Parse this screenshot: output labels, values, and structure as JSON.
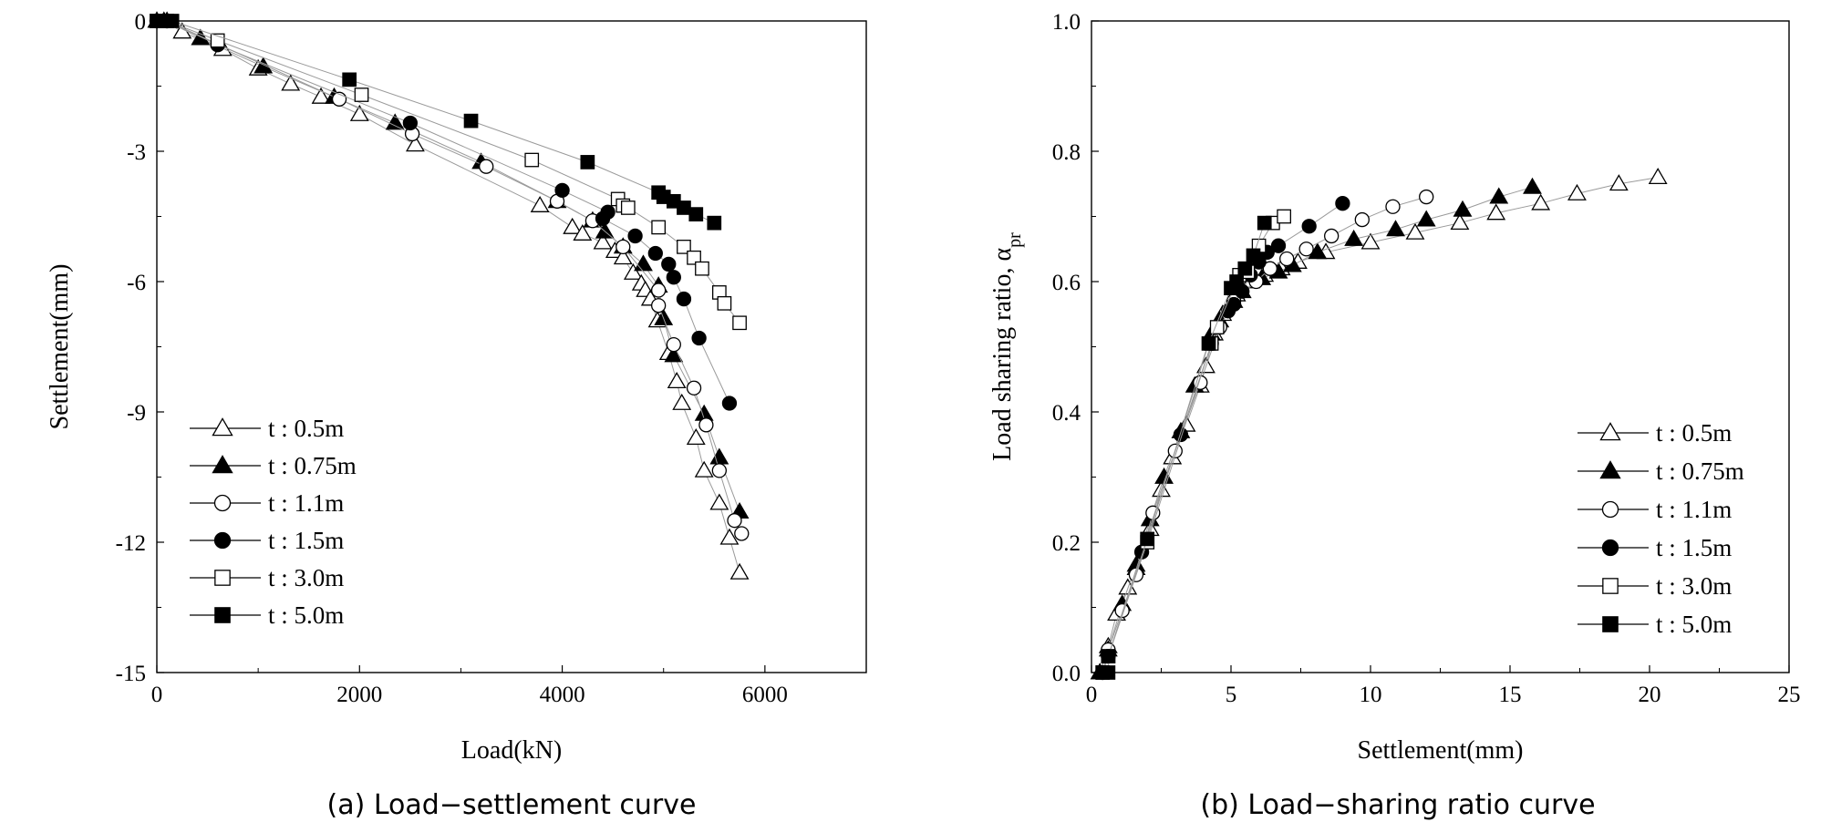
{
  "chart_data": [
    {
      "type": "scatter",
      "xlabel": "Load(kN)",
      "ylabel": "Settlement(mm)",
      "caption": "(a) Load−settlement curve",
      "xlim": [
        0,
        7000
      ],
      "ylim": [
        -15,
        0
      ],
      "xticks": [
        "0",
        "2000",
        "4000",
        "6000"
      ],
      "yticks": [
        "0",
        "-3",
        "-6",
        "-9",
        "-12",
        "-15"
      ],
      "legend_position": "bottom-left",
      "series": [
        {
          "name": "t : 0.5m",
          "marker": "triangle-open",
          "points": [
            [
              0,
              0
            ],
            [
              70,
              0
            ],
            [
              250,
              -0.25
            ],
            [
              650,
              -0.65
            ],
            [
              1000,
              -1.1
            ],
            [
              1320,
              -1.45
            ],
            [
              1620,
              -1.75
            ],
            [
              2000,
              -2.15
            ],
            [
              2550,
              -2.85
            ],
            [
              3780,
              -4.25
            ],
            [
              4100,
              -4.75
            ],
            [
              4200,
              -4.9
            ],
            [
              4400,
              -5.1
            ],
            [
              4520,
              -5.3
            ],
            [
              4600,
              -5.45
            ],
            [
              4700,
              -5.8
            ],
            [
              4780,
              -6.05
            ],
            [
              4820,
              -6.2
            ],
            [
              4870,
              -6.4
            ],
            [
              4940,
              -6.9
            ],
            [
              5050,
              -7.65
            ],
            [
              5130,
              -8.3
            ],
            [
              5180,
              -8.8
            ],
            [
              5320,
              -9.6
            ],
            [
              5400,
              -10.35
            ],
            [
              5550,
              -11.1
            ],
            [
              5650,
              -11.9
            ],
            [
              5750,
              -12.7
            ]
          ]
        },
        {
          "name": "t : 0.75m",
          "marker": "triangle-filled",
          "points": [
            [
              0,
              0
            ],
            [
              100,
              0
            ],
            [
              430,
              -0.4
            ],
            [
              1050,
              -1.05
            ],
            [
              1750,
              -1.75
            ],
            [
              2350,
              -2.35
            ],
            [
              3200,
              -3.25
            ],
            [
              3950,
              -4.15
            ],
            [
              4300,
              -4.6
            ],
            [
              4420,
              -4.85
            ],
            [
              4600,
              -5.2
            ],
            [
              4800,
              -5.6
            ],
            [
              4950,
              -6.1
            ],
            [
              5000,
              -6.85
            ],
            [
              5100,
              -7.7
            ],
            [
              5400,
              -9.05
            ],
            [
              5550,
              -10.05
            ],
            [
              5750,
              -11.3
            ]
          ]
        },
        {
          "name": "t : 1.1m",
          "marker": "circle-open",
          "points": [
            [
              0,
              0
            ],
            [
              100,
              0
            ],
            [
              1800,
              -1.8
            ],
            [
              2520,
              -2.6
            ],
            [
              3250,
              -3.35
            ],
            [
              3950,
              -4.15
            ],
            [
              4300,
              -4.6
            ],
            [
              4600,
              -5.2
            ],
            [
              4950,
              -6.2
            ],
            [
              4950,
              -6.55
            ],
            [
              5100,
              -7.45
            ],
            [
              5300,
              -8.45
            ],
            [
              5420,
              -9.3
            ],
            [
              5550,
              -10.35
            ],
            [
              5700,
              -11.5
            ],
            [
              5770,
              -11.8
            ]
          ]
        },
        {
          "name": "t : 1.5m",
          "marker": "circle-filled",
          "points": [
            [
              0,
              0
            ],
            [
              100,
              0
            ],
            [
              600,
              -0.55
            ],
            [
              2500,
              -2.35
            ],
            [
              4000,
              -3.9
            ],
            [
              4450,
              -4.4
            ],
            [
              4400,
              -4.55
            ],
            [
              4720,
              -4.95
            ],
            [
              4920,
              -5.35
            ],
            [
              5050,
              -5.6
            ],
            [
              5100,
              -5.9
            ],
            [
              5200,
              -6.4
            ],
            [
              5350,
              -7.3
            ],
            [
              5650,
              -8.8
            ]
          ]
        },
        {
          "name": "t : 3.0m",
          "marker": "square-open",
          "points": [
            [
              0,
              0
            ],
            [
              100,
              0
            ],
            [
              600,
              -0.45
            ],
            [
              2020,
              -1.7
            ],
            [
              3700,
              -3.2
            ],
            [
              4550,
              -4.1
            ],
            [
              4600,
              -4.25
            ],
            [
              4650,
              -4.3
            ],
            [
              4950,
              -4.75
            ],
            [
              5200,
              -5.2
            ],
            [
              5300,
              -5.45
            ],
            [
              5380,
              -5.7
            ],
            [
              5550,
              -6.25
            ],
            [
              5600,
              -6.5
            ],
            [
              5750,
              -6.95
            ]
          ]
        },
        {
          "name": "t : 5.0m",
          "marker": "square-filled",
          "points": [
            [
              0,
              0
            ],
            [
              100,
              0
            ],
            [
              150,
              0
            ],
            [
              1900,
              -1.35
            ],
            [
              3100,
              -2.3
            ],
            [
              4250,
              -3.25
            ],
            [
              4950,
              -3.95
            ],
            [
              5000,
              -4.05
            ],
            [
              5100,
              -4.15
            ],
            [
              5200,
              -4.3
            ],
            [
              5320,
              -4.45
            ],
            [
              5500,
              -4.65
            ]
          ]
        }
      ]
    },
    {
      "type": "scatter",
      "xlabel": "Settlement(mm)",
      "ylabel": "Load sharing ratio, α",
      "ylabel_subscript": "pr",
      "caption": "(b) Load−sharing ratio curve",
      "xlim": [
        0,
        25
      ],
      "ylim": [
        0,
        1.0
      ],
      "xticks": [
        "0",
        "5",
        "10",
        "15",
        "20",
        "25"
      ],
      "yticks": [
        "0.0",
        "0.2",
        "0.4",
        "0.6",
        "0.8",
        "1.0"
      ],
      "legend_position": "bottom-right",
      "series": [
        {
          "name": "t : 0.5m",
          "marker": "triangle-open",
          "points": [
            [
              0.3,
              0
            ],
            [
              0.6,
              0.04
            ],
            [
              0.9,
              0.09
            ],
            [
              1.3,
              0.13
            ],
            [
              1.6,
              0.16
            ],
            [
              2.1,
              0.22
            ],
            [
              2.5,
              0.28
            ],
            [
              2.9,
              0.33
            ],
            [
              3.4,
              0.38
            ],
            [
              3.9,
              0.44
            ],
            [
              4.1,
              0.47
            ],
            [
              4.4,
              0.52
            ],
            [
              4.7,
              0.55
            ],
            [
              5.2,
              0.58
            ],
            [
              5.7,
              0.6
            ],
            [
              6.2,
              0.61
            ],
            [
              6.8,
              0.62
            ],
            [
              7.4,
              0.63
            ],
            [
              8.4,
              0.645
            ],
            [
              10.0,
              0.66
            ],
            [
              11.6,
              0.675
            ],
            [
              13.2,
              0.69
            ],
            [
              14.5,
              0.705
            ],
            [
              16.1,
              0.72
            ],
            [
              17.4,
              0.735
            ],
            [
              18.9,
              0.75
            ],
            [
              20.3,
              0.76
            ]
          ]
        },
        {
          "name": "t : 0.75m",
          "marker": "triangle-filled",
          "points": [
            [
              0.3,
              0
            ],
            [
              0.6,
              0.035
            ],
            [
              1.1,
              0.105
            ],
            [
              1.6,
              0.165
            ],
            [
              2.1,
              0.235
            ],
            [
              2.6,
              0.3
            ],
            [
              3.2,
              0.37
            ],
            [
              3.7,
              0.44
            ],
            [
              4.3,
              0.52
            ],
            [
              4.6,
              0.54
            ],
            [
              5.1,
              0.57
            ],
            [
              5.4,
              0.585
            ],
            [
              6.1,
              0.605
            ],
            [
              6.7,
              0.615
            ],
            [
              7.2,
              0.625
            ],
            [
              8.1,
              0.645
            ],
            [
              9.4,
              0.665
            ],
            [
              10.9,
              0.68
            ],
            [
              12.0,
              0.695
            ],
            [
              13.3,
              0.71
            ],
            [
              14.6,
              0.73
            ],
            [
              15.8,
              0.745
            ]
          ]
        },
        {
          "name": "t : 1.1m",
          "marker": "circle-open",
          "points": [
            [
              0.4,
              0
            ],
            [
              0.6,
              0.035
            ],
            [
              1.1,
              0.095
            ],
            [
              1.6,
              0.15
            ],
            [
              2.2,
              0.245
            ],
            [
              3.0,
              0.34
            ],
            [
              3.9,
              0.445
            ],
            [
              4.6,
              0.53
            ],
            [
              5.1,
              0.57
            ],
            [
              5.9,
              0.6
            ],
            [
              6.4,
              0.62
            ],
            [
              7.0,
              0.635
            ],
            [
              7.7,
              0.65
            ],
            [
              8.6,
              0.67
            ],
            [
              9.7,
              0.695
            ],
            [
              10.8,
              0.715
            ],
            [
              12.0,
              0.73
            ]
          ]
        },
        {
          "name": "t : 1.5m",
          "marker": "circle-filled",
          "points": [
            [
              0.4,
              0
            ],
            [
              0.6,
              0.025
            ],
            [
              1.8,
              0.185
            ],
            [
              3.2,
              0.365
            ],
            [
              4.3,
              0.505
            ],
            [
              4.9,
              0.555
            ],
            [
              5.1,
              0.565
            ],
            [
              5.4,
              0.585
            ],
            [
              5.7,
              0.61
            ],
            [
              6.0,
              0.63
            ],
            [
              6.3,
              0.645
            ],
            [
              6.7,
              0.655
            ],
            [
              7.8,
              0.685
            ],
            [
              9.0,
              0.72
            ]
          ]
        },
        {
          "name": "t : 3.0m",
          "marker": "square-open",
          "points": [
            [
              0.4,
              0
            ],
            [
              0.6,
              0.025
            ],
            [
              2.0,
              0.2
            ],
            [
              4.3,
              0.505
            ],
            [
              4.5,
              0.53
            ],
            [
              5.3,
              0.61
            ],
            [
              5.6,
              0.615
            ],
            [
              6.0,
              0.655
            ],
            [
              6.5,
              0.69
            ],
            [
              6.9,
              0.7
            ]
          ]
        },
        {
          "name": "t : 5.0m",
          "marker": "square-filled",
          "points": [
            [
              0.4,
              0
            ],
            [
              0.6,
              0
            ],
            [
              0.6,
              0.025
            ],
            [
              2.0,
              0.205
            ],
            [
              4.2,
              0.505
            ],
            [
              5.0,
              0.59
            ],
            [
              5.2,
              0.6
            ],
            [
              5.5,
              0.62
            ],
            [
              5.8,
              0.64
            ],
            [
              6.2,
              0.69
            ]
          ]
        }
      ]
    }
  ]
}
